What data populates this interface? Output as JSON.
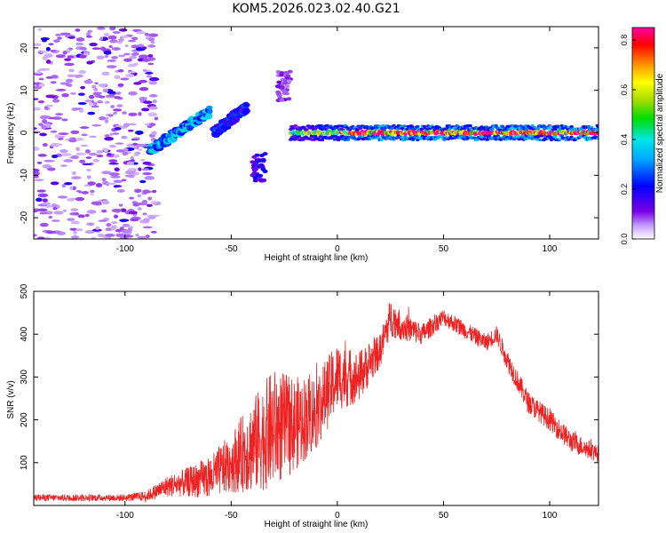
{
  "title": "KOM5.2026.023.02.40.G21",
  "chart_data": [
    {
      "type": "heatmap",
      "name": "doppler-spectrogram",
      "xlabel": "Height of straight line (km)",
      "ylabel": "Frequency (Hz)",
      "xlim": [
        -143,
        123
      ],
      "ylim": [
        -25,
        25
      ],
      "xticks": [
        -100,
        -50,
        0,
        50,
        100
      ],
      "yticks": [
        -20,
        -10,
        0,
        10,
        20
      ],
      "colorbar": {
        "label": "Normalized spectral amplitude",
        "range": [
          0,
          0.85
        ],
        "ticks": [
          0.0,
          0.2,
          0.4,
          0.6,
          0.8
        ]
      },
      "features": [
        {
          "desc": "scattered noise",
          "x_range": [
            -143,
            -85
          ],
          "y_range": [
            -25,
            25
          ],
          "amplitude": 0.05
        },
        {
          "desc": "rising track",
          "x_start": -88,
          "x_end": -60,
          "y_start": -4,
          "y_end": 5,
          "amplitude": 0.3
        },
        {
          "desc": "rising track",
          "x_start": -58,
          "x_end": -43,
          "y_start": 0,
          "y_end": 6,
          "amplitude": 0.2
        },
        {
          "desc": "blob",
          "x": -37,
          "y": -8,
          "amplitude": 0.15
        },
        {
          "desc": "blob",
          "x": -25,
          "y": 11,
          "amplitude": 0.1
        },
        {
          "desc": "carrier line",
          "x_start": -22,
          "x_end": 123,
          "y": 0,
          "amplitude": 0.75
        }
      ]
    },
    {
      "type": "line",
      "name": "snr",
      "xlabel": "Height of straight line (km)",
      "ylabel": "SNR (v/v)",
      "xlim": [
        -143,
        123
      ],
      "ylim": [
        0,
        500
      ],
      "xticks": [
        -100,
        -50,
        0,
        50,
        100
      ],
      "yticks": [
        100,
        200,
        300,
        400,
        500
      ],
      "color": "#ee2222",
      "series": [
        {
          "name": "SNR envelope",
          "x": [
            -143,
            -120,
            -100,
            -90,
            -80,
            -70,
            -60,
            -50,
            -40,
            -30,
            -20,
            -10,
            0,
            10,
            20,
            25,
            30,
            40,
            50,
            60,
            70,
            75,
            80,
            90,
            100,
            110,
            123
          ],
          "y": [
            18,
            18,
            18,
            22,
            45,
            55,
            65,
            100,
            140,
            180,
            190,
            220,
            300,
            300,
            360,
            440,
            420,
            400,
            440,
            410,
            380,
            400,
            340,
            240,
            200,
            150,
            120
          ],
          "spread": [
            8,
            8,
            8,
            12,
            25,
            35,
            50,
            70,
            110,
            140,
            110,
            90,
            80,
            60,
            40,
            45,
            35,
            25,
            20,
            20,
            20,
            20,
            25,
            25,
            25,
            25,
            20
          ]
        }
      ]
    }
  ]
}
